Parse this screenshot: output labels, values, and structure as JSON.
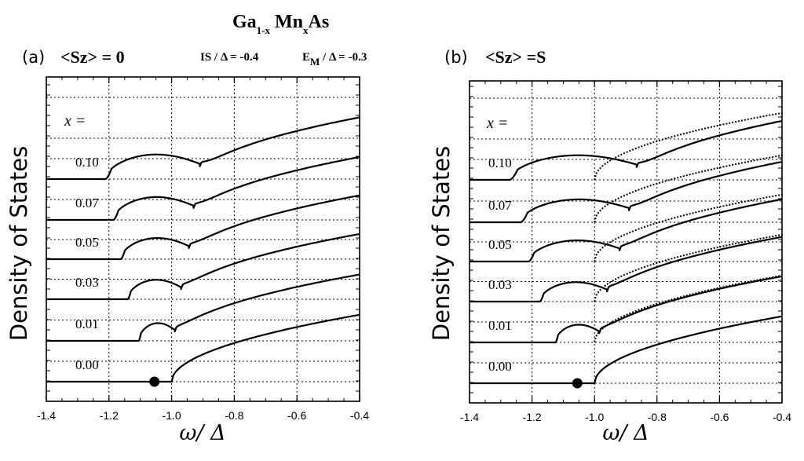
{
  "figure": {
    "title": "Ga1-X MnXAs",
    "title_base_ga": "Ga",
    "title_sub_ga": "1-x",
    "title_base_mn": "Mn",
    "title_sub_mn": "x",
    "title_base_as": "As",
    "param_is": "IS / Δ = -0.4",
    "param_em_base": "E",
    "param_em_sub": "M",
    "param_em_rest": " / Δ = -0.3"
  },
  "chart_data": [
    {
      "type": "line",
      "panel_label": "(a)",
      "title": "<Sz> = 0",
      "xlabel": "ω/ Δ",
      "ylabel": "Density of  States",
      "xlim": [
        -1.4,
        -0.4
      ],
      "xticks": [
        "-1.4",
        "-1.2",
        "-1.0",
        "-0.8",
        "-0.6",
        "-0.4"
      ],
      "grid": true,
      "concentration_header": "x =",
      "marker": {
        "label": "dot",
        "x": -1.055,
        "series": "0.00"
      },
      "series": [
        {
          "name": "0.00",
          "edge": -1.0,
          "style": "solid"
        },
        {
          "name": "0.01",
          "edge": -1.105,
          "dip": -0.99,
          "style": "solid"
        },
        {
          "name": "0.03",
          "edge": -1.14,
          "dip": -0.97,
          "style": "solid"
        },
        {
          "name": "0.05",
          "edge": -1.162,
          "dip": -0.945,
          "style": "solid"
        },
        {
          "name": "0.07",
          "edge": -1.185,
          "dip": -0.93,
          "style": "solid"
        },
        {
          "name": "0.10",
          "edge": -1.21,
          "dip": -0.91,
          "style": "solid"
        }
      ]
    },
    {
      "type": "line",
      "panel_label": "(b)",
      "title": "<Sz> =S",
      "xlabel": "ω/ Δ",
      "ylabel": "Density of  States",
      "xlim": [
        -1.4,
        -0.4
      ],
      "xticks": [
        "-1.4",
        "-1.2",
        "-1.0",
        "-0.8",
        "-0.6",
        "-0.4"
      ],
      "grid": true,
      "concentration_header": "x =",
      "marker": {
        "label": "dot",
        "x": -1.055,
        "series": "0.00"
      },
      "series": [
        {
          "name": "0.00",
          "edge": -1.0,
          "style": "solid"
        },
        {
          "name": "0.01",
          "edge": -1.125,
          "dip": -0.985,
          "style": "solid"
        },
        {
          "name": "0.03",
          "edge": -1.175,
          "dip": -0.96,
          "style": "solid"
        },
        {
          "name": "0.05",
          "edge": -1.21,
          "dip": -0.92,
          "style": "solid"
        },
        {
          "name": "0.07",
          "edge": -1.235,
          "dip": -0.89,
          "style": "solid"
        },
        {
          "name": "0.10",
          "edge": -1.27,
          "dip": -0.865,
          "style": "solid"
        }
      ],
      "reference_dotted": "pure-host band edge at -1.0 (dotted curves for x > 0)"
    }
  ]
}
